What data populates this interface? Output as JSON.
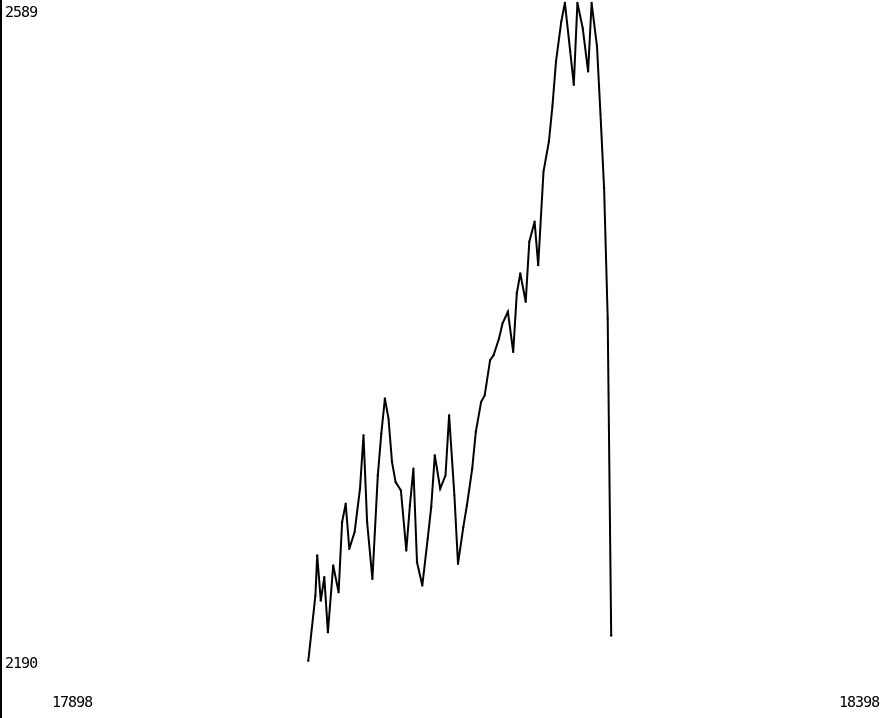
{
  "chart_data": {
    "type": "line",
    "title": "",
    "xlabel": "",
    "ylabel": "",
    "xlim": [
      17898,
      18398
    ],
    "ylim": [
      2190,
      2589
    ],
    "x_ticks": [
      "17898",
      "18398"
    ],
    "y_ticks": [
      "2589",
      "2190"
    ],
    "grid": false,
    "legend": "none",
    "colors": {
      "line": "#000000",
      "axis": "#000000",
      "background": "#ffffff"
    },
    "series": [
      {
        "x": [
          18071,
          18075,
          18076,
          18078,
          18080,
          18082,
          18085,
          18088,
          18090,
          18092,
          18094,
          18097,
          18100,
          18102,
          18104,
          18107,
          18110,
          18112,
          18114,
          18116,
          18118,
          18120,
          18123,
          18126,
          18128,
          18130,
          18132,
          18135,
          18138,
          18140,
          18142,
          18145,
          18148,
          18150,
          18153,
          18155,
          18158,
          18160,
          18163,
          18165,
          18168,
          18170,
          18173,
          18175,
          18178,
          18180,
          18183,
          18186,
          18188,
          18190,
          18193,
          18195,
          18198,
          18200,
          18203,
          18206,
          18208,
          18210,
          18213,
          18215,
          18218,
          18220,
          18222,
          18225,
          18228,
          18230,
          18233,
          18235,
          18237,
          18239,
          18241
        ],
        "y": [
          2195,
          2234,
          2258,
          2231,
          2245,
          2212,
          2252,
          2236,
          2278,
          2289,
          2262,
          2272,
          2298,
          2330,
          2278,
          2244,
          2306,
          2331,
          2352,
          2340,
          2314,
          2302,
          2297,
          2261,
          2288,
          2310,
          2254,
          2240,
          2268,
          2287,
          2318,
          2298,
          2306,
          2342,
          2294,
          2253,
          2275,
          2288,
          2310,
          2332,
          2350,
          2354,
          2375,
          2378,
          2388,
          2397,
          2404,
          2380,
          2415,
          2427,
          2410,
          2446,
          2458,
          2432,
          2488,
          2506,
          2527,
          2554,
          2578,
          2589,
          2560,
          2540,
          2589,
          2574,
          2548,
          2589,
          2563,
          2522,
          2478,
          2400,
          2210
        ]
      }
    ]
  }
}
